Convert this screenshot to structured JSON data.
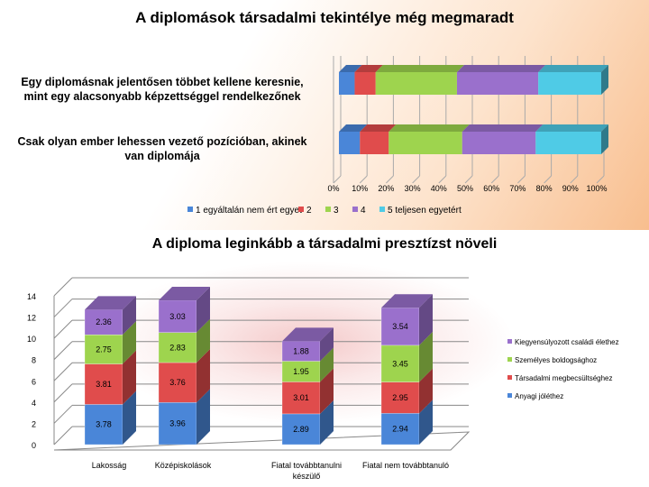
{
  "chart_data": [
    {
      "type": "bar",
      "orientation": "horizontal",
      "stacked": "percent",
      "title": "A diplomások társadalmi tekintélye még megmaradt",
      "categories": [
        "Egy diplomásnak jelentősen többet kellene keresnie, mint egy alacsonyabb képzettséggel rendelkezőnek",
        "Csak olyan ember lehessen vezető pozícióban, akinek van diplomája"
      ],
      "series": [
        {
          "name": "1 egyáltalán nem ért egyet",
          "color": "#4a86d8",
          "values": [
            6,
            8
          ]
        },
        {
          "name": "2",
          "color": "#e04c4c",
          "values": [
            8,
            11
          ]
        },
        {
          "name": "3",
          "color": "#9ed44e",
          "values": [
            31,
            28
          ]
        },
        {
          "name": "4",
          "color": "#9a70cc",
          "values": [
            31,
            28
          ]
        },
        {
          "name": "5 teljesen egyetért",
          "color": "#4fcbe6",
          "values": [
            24,
            25
          ]
        }
      ],
      "xticks": [
        "0%",
        "10%",
        "20%",
        "30%",
        "40%",
        "50%",
        "60%",
        "70%",
        "80%",
        "90%",
        "100%"
      ],
      "xlim": [
        0,
        100
      ],
      "legend": "bottom"
    },
    {
      "type": "bar",
      "stacked": true,
      "title": "A diploma leginkább a társadalmi presztízst növeli",
      "categories": [
        "Lakosság",
        "Középiskolások",
        "Fiatal továbbtanulni készülő",
        "Fiatal nem továbbtanuló"
      ],
      "series": [
        {
          "name": "Anyagi jóléthez",
          "color": "#4a86d8",
          "values": [
            3.78,
            3.96,
            2.89,
            2.94
          ]
        },
        {
          "name": "Társadalmi megbecsültséghez",
          "color": "#e04c4c",
          "values": [
            3.81,
            3.76,
            3.01,
            2.95
          ]
        },
        {
          "name": "Személyes boldogsághoz",
          "color": "#9ed44e",
          "values": [
            2.75,
            2.83,
            1.95,
            3.45
          ]
        },
        {
          "name": "Kiegyensúlyozott családi élethez",
          "color": "#9a70cc",
          "values": [
            2.36,
            3.03,
            1.88,
            3.54
          ]
        }
      ],
      "yticks": [
        "0",
        "2",
        "4",
        "6",
        "8",
        "10",
        "12",
        "14"
      ],
      "ylim": [
        0,
        14
      ],
      "legend": "right"
    }
  ]
}
